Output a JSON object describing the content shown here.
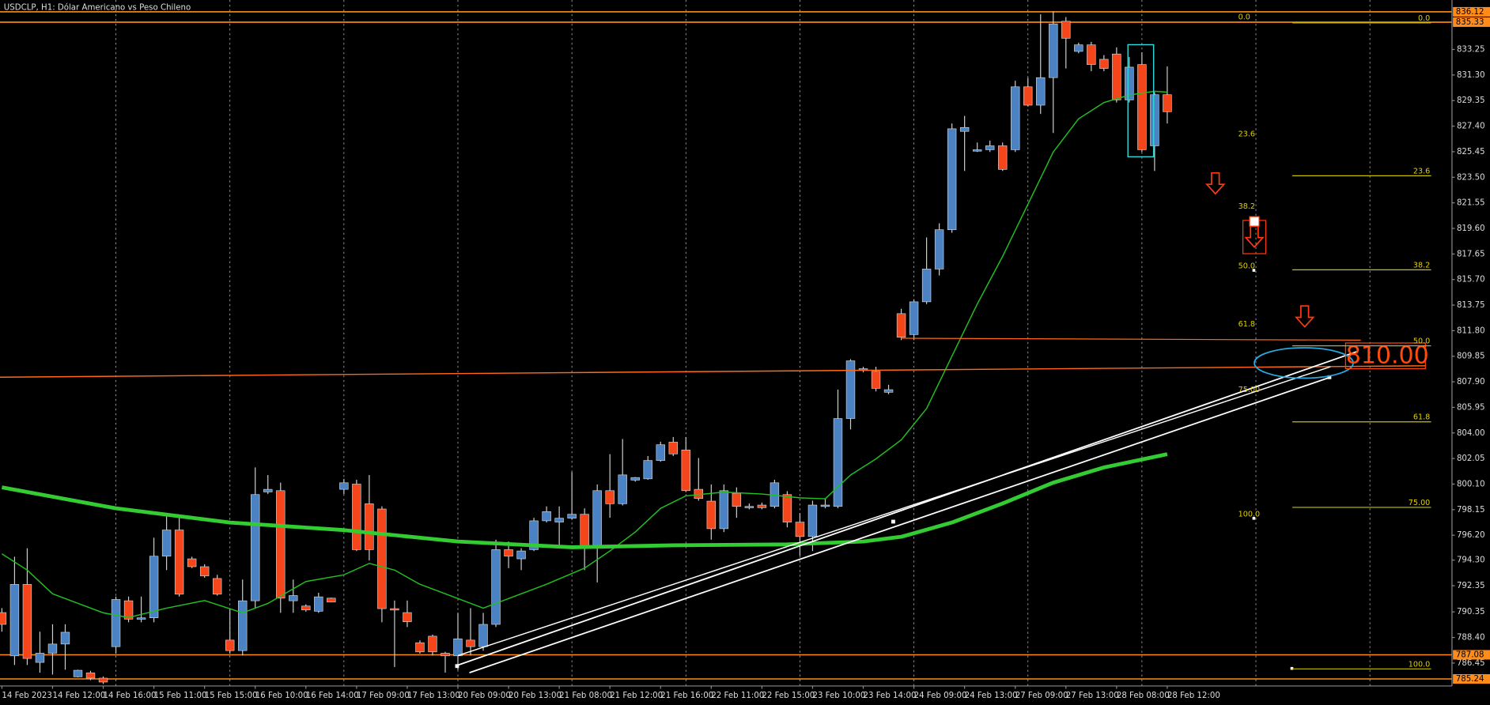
{
  "chart_data": {
    "type": "candlestick",
    "title": "USDCLP, H1:  Dólar Americano vs Peso Chileno",
    "categories": [
      "14 Feb 2023",
      null,
      null,
      null,
      "14 Feb 12:00",
      null,
      null,
      null,
      "14 Feb 16:00",
      null,
      null,
      null,
      "15 Feb 11:00",
      null,
      null,
      null,
      "15 Feb 15:00",
      null,
      null,
      null,
      "16 Feb 10:00",
      null,
      null,
      null,
      "16 Feb 14:00",
      null,
      null,
      null,
      "17 Feb 09:00",
      null,
      null,
      null,
      "17 Feb 13:00",
      null,
      null,
      null,
      "20 Feb 09:00",
      null,
      null,
      null,
      "20 Feb 13:00",
      null,
      null,
      null,
      "21 Feb 08:00",
      null,
      null,
      null,
      "21 Feb 12:00",
      null,
      null,
      null,
      "21 Feb 16:00",
      null,
      null,
      null,
      "22 Feb 11:00",
      null,
      null,
      null,
      "22 Feb 15:00",
      null,
      null,
      null,
      "23 Feb 10:00",
      null,
      null,
      null,
      "23 Feb 14:00",
      null,
      null,
      null,
      "24 Feb 09:00",
      null,
      null,
      null,
      "24 Feb 13:00",
      null,
      null,
      null,
      "27 Feb 09:00",
      null,
      null,
      null,
      "27 Feb 13:00",
      null,
      null,
      null,
      "28 Feb 08:00",
      null,
      null,
      null,
      "28 Feb 12:00"
    ],
    "open": [
      790.3,
      787.0,
      792.45,
      786.5,
      787.2,
      787.9,
      785.4,
      785.7,
      785.3,
      787.7,
      791.2,
      789.8,
      789.9,
      794.6,
      796.6,
      794.4,
      793.8,
      792.9,
      788.2,
      787.4,
      791.2,
      799.5,
      799.6,
      791.2,
      790.8,
      790.4,
      791.4,
      799.7,
      800.1,
      798.6,
      798.2,
      790.6,
      790.3,
      788.0,
      788.5,
      787.2,
      787.0,
      788.2,
      787.7,
      789.4,
      795.1,
      794.4,
      795.1,
      797.3,
      797.2,
      797.5,
      797.8,
      795.4,
      799.6,
      798.6,
      800.4,
      800.5,
      801.9,
      803.3,
      802.7,
      799.7,
      798.8,
      796.7,
      799.4,
      798.3,
      798.5,
      798.4,
      799.3,
      797.2,
      796.1,
      798.4,
      798.4,
      805.1,
      808.8,
      808.7,
      807.1,
      813.1,
      811.5,
      814.0,
      816.5,
      819.5,
      827.0,
      825.5,
      825.6,
      825.9,
      825.6,
      830.4,
      829.0,
      831.1,
      835.4,
      833.1,
      833.6,
      832.5,
      832.9,
      829.4,
      832.1,
      825.9,
      829.8
    ],
    "high": [
      790.64,
      794.56,
      795.21,
      788.84,
      789.41,
      789.41,
      785.94,
      785.86,
      785.43,
      791.52,
      791.52,
      791.52,
      796.01,
      797.67,
      797.53,
      794.56,
      793.98,
      793.18,
      790.64,
      792.82,
      801.37,
      800.79,
      800.21,
      792.82,
      790.93,
      791.81,
      791.44,
      800.5,
      800.43,
      800.79,
      798.4,
      791.22,
      791.22,
      788.18,
      788.62,
      787.31,
      790.28,
      790.64,
      790.28,
      795.86,
      795.72,
      795.21,
      797.53,
      798.4,
      798.4,
      801.01,
      798.25,
      800.07,
      802.38,
      803.54,
      800.64,
      802.24,
      803.33,
      803.69,
      803.69,
      802.09,
      800.07,
      800.07,
      799.85,
      798.62,
      798.69,
      800.43,
      799.56,
      797.89,
      798.83,
      798.98,
      807.31,
      809.63,
      809.05,
      809.05,
      807.67,
      813.47,
      814.19,
      818.91,
      819.99,
      827.6,
      828.18,
      826.15,
      826.3,
      826.15,
      830.86,
      831.08,
      835.93,
      836.15,
      835.72,
      833.76,
      833.83,
      832.82,
      833.4,
      832.67,
      833.03,
      829.99,
      831.95
    ],
    "low": [
      788.84,
      786.3,
      786.3,
      785.72,
      785.57,
      785.94,
      785.36,
      785.14,
      784.85,
      787.17,
      789.56,
      789.56,
      789.56,
      793.54,
      791.52,
      793.69,
      792.96,
      791.59,
      787.17,
      787.02,
      790.64,
      799.34,
      790.28,
      790.28,
      790.36,
      790.28,
      791.08,
      799.34,
      794.99,
      794.27,
      789.56,
      786.15,
      789.2,
      787.17,
      787.02,
      785.72,
      785.94,
      787.02,
      787.39,
      789.2,
      793.69,
      793.54,
      794.99,
      797.17,
      795.35,
      797.38,
      793.54,
      792.6,
      797.53,
      798.47,
      800.28,
      800.43,
      801.8,
      802.24,
      799.49,
      798.83,
      795.86,
      796.44,
      797.53,
      798.18,
      798.18,
      798.25,
      796.8,
      794.63,
      794.99,
      798.25,
      798.25,
      804.27,
      808.62,
      807.17,
      806.95,
      811.08,
      811.08,
      813.83,
      816.01,
      819.27,
      823.98,
      825.43,
      825.43,
      823.98,
      825.43,
      828.9,
      828.33,
      826.88,
      831.8,
      832.96,
      831.59,
      831.59,
      829.2,
      829.2,
      825.43,
      823.98,
      827.6
    ],
    "close": [
      789.4,
      792.45,
      786.8,
      787.2,
      787.9,
      788.8,
      785.9,
      785.3,
      785.0,
      791.3,
      789.8,
      789.9,
      794.6,
      796.6,
      791.7,
      793.8,
      793.1,
      791.7,
      787.4,
      791.2,
      799.3,
      799.7,
      791.4,
      791.6,
      790.5,
      791.5,
      791.1,
      800.2,
      795.1,
      795.1,
      790.6,
      790.5,
      789.6,
      787.3,
      787.3,
      787.0,
      788.3,
      787.7,
      789.4,
      795.1,
      794.6,
      795.0,
      797.3,
      798.0,
      797.5,
      797.8,
      795.4,
      799.6,
      798.6,
      800.8,
      800.6,
      801.9,
      803.1,
      802.4,
      799.6,
      799.0,
      796.7,
      799.6,
      798.4,
      798.4,
      798.3,
      800.2,
      797.2,
      796.1,
      798.5,
      798.5,
      805.1,
      809.5,
      808.9,
      807.4,
      807.3,
      811.3,
      814.0,
      816.5,
      819.5,
      827.2,
      827.3,
      825.6,
      825.9,
      824.1,
      830.4,
      829.0,
      831.1,
      835.2,
      834.1,
      833.6,
      832.1,
      831.8,
      829.4,
      831.9,
      825.6,
      829.8,
      828.5
    ],
    "up_color": "#4a82c3",
    "down_color": "#f5451a",
    "averages": [
      {
        "color": "#22c022",
        "width": 1.2,
        "x": [
          0,
          2,
          4,
          8,
          10,
          13,
          16,
          19,
          21,
          24,
          27,
          29,
          31,
          33,
          36,
          38,
          40,
          43,
          46,
          48,
          50,
          52,
          54,
          57,
          60,
          63,
          65,
          67,
          69,
          71,
          73,
          75,
          77,
          79,
          81,
          83,
          85,
          87,
          89,
          91,
          92
        ],
        "values": [
          794.78,
          793.54,
          791.73,
          790.28,
          789.92,
          790.64,
          791.22,
          790.28,
          791.0,
          792.67,
          793.18,
          794.05,
          793.54,
          792.46,
          791.37,
          790.64,
          791.37,
          792.46,
          793.69,
          795.0,
          796.44,
          798.25,
          799.2,
          799.49,
          799.34,
          799.05,
          798.98,
          800.79,
          802.02,
          803.47,
          805.86,
          809.85,
          813.83,
          817.46,
          821.44,
          825.43,
          827.96,
          829.2,
          829.77,
          830.06,
          829.99
        ]
      },
      {
        "color": "#33cc33",
        "width": 4,
        "x": [
          0,
          9,
          18,
          27,
          36,
          45,
          53,
          62,
          68,
          71,
          75,
          79,
          83,
          87,
          92
        ],
        "values": [
          799.85,
          798.25,
          797.17,
          796.59,
          795.72,
          795.28,
          795.43,
          795.5,
          795.72,
          796.08,
          797.17,
          798.62,
          800.21,
          801.37,
          802.38
        ]
      }
    ],
    "hlines": [
      836.12,
      835.33,
      787.08,
      785.24
    ],
    "hline_color": "#ff8c1a",
    "ylim": [
      784.7,
      837.02
    ],
    "yticks": [
      833.25,
      {
        "value": 831.3,
        "label": "831.30"
      },
      829.35,
      {
        "value": 827.4,
        "label": "827.40"
      },
      825.45,
      {
        "value": 823.5,
        "label": "823.50"
      },
      821.55,
      {
        "value": 819.6,
        "label": "819.60"
      },
      817.65,
      {
        "value": 815.7,
        "label": "815.70"
      },
      813.75,
      {
        "value": 811.8,
        "label": "811.80"
      },
      809.85,
      {
        "value": 807.9,
        "label": "807.90"
      },
      805.95,
      {
        "value": 804.0,
        "label": "804.00"
      },
      802.05,
      {
        "value": 800.1,
        "label": "800.10"
      },
      798.15,
      {
        "value": 796.2,
        "label": "796.20"
      },
      {
        "value": 794.3,
        "label": "794.30"
      },
      792.35,
      790.35,
      {
        "value": 788.4,
        "label": "788.40"
      },
      786.45
    ],
    "fib_left": [
      "0.0",
      "23.6",
      "38.2",
      "50.0",
      "61.8",
      "75.00",
      "100.0"
    ],
    "fib_right": [
      "0.0",
      "23.6",
      "38.2",
      "50.0",
      "61.8",
      "75.00",
      "100.0"
    ],
    "annotation": "810.00"
  }
}
